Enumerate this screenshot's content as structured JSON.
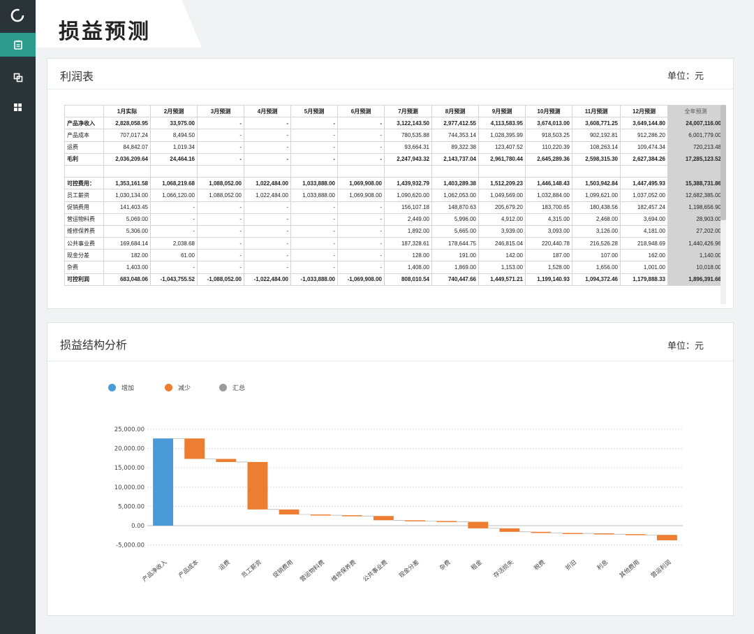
{
  "page": {
    "title": "损益预测"
  },
  "colors": {
    "sidebar": "#2a3338",
    "active": "#2e9c8d",
    "increase": "#4a9ad8",
    "decrease": "#ed7d31",
    "total": "#9a9a9a"
  },
  "nav": [
    {
      "name": "logo-icon"
    },
    {
      "name": "document-icon"
    },
    {
      "name": "layers-icon"
    },
    {
      "name": "grid-icon"
    }
  ],
  "pl_card": {
    "title": "利润表",
    "unit": "单位：元",
    "columns": [
      "",
      "1月实际",
      "2月预测",
      "3月预测",
      "4月预测",
      "5月预测",
      "6月预测",
      "7月预测",
      "8月预测",
      "9月预测",
      "10月预测",
      "11月预测",
      "12月预测",
      "全年预测"
    ],
    "rows": [
      {
        "bold": true,
        "cells": [
          "产品净收入",
          "2,828,058.95",
          "33,975.00",
          "-",
          "-",
          "-",
          "-",
          "3,122,143.50",
          "2,977,412.55",
          "4,113,583.95",
          "3,674,013.00",
          "3,608,771.25",
          "3,649,144.80",
          "24,007,116.00"
        ]
      },
      {
        "bold": false,
        "cells": [
          "产品成本",
          "707,017.24",
          "8,494.50",
          "-",
          "-",
          "-",
          "-",
          "780,535.88",
          "744,353.14",
          "1,028,395.99",
          "918,503.25",
          "902,192.81",
          "912,286.20",
          "6,001,779.00"
        ]
      },
      {
        "bold": false,
        "cells": [
          "运费",
          "84,842.07",
          "1,019.34",
          "-",
          "-",
          "-",
          "-",
          "93,664.31",
          "89,322.38",
          "123,407.52",
          "110,220.39",
          "108,263.14",
          "109,474.34",
          "720,213.48"
        ]
      },
      {
        "bold": true,
        "cells": [
          "毛利",
          "2,036,209.64",
          "24,464.16",
          "-",
          "-",
          "-",
          "-",
          "2,247,943.32",
          "2,143,737.04",
          "2,961,780.44",
          "2,645,289.36",
          "2,598,315.30",
          "2,627,384.26",
          "17,285,123.52"
        ]
      },
      {
        "bold": false,
        "cells": [
          "",
          "",
          "",
          "",
          "",
          "",
          "",
          "",
          "",
          "",
          "",
          "",
          "",
          ""
        ]
      },
      {
        "bold": true,
        "cells": [
          "可控费用：",
          "1,353,161.58",
          "1,068,219.68",
          "1,088,052.00",
          "1,022,484.00",
          "1,033,888.00",
          "1,069,908.00",
          "1,439,932.79",
          "1,403,289.38",
          "1,512,209.23",
          "1,446,148.43",
          "1,503,942.84",
          "1,447,495.93",
          "15,388,731.86"
        ]
      },
      {
        "bold": false,
        "cells": [
          "员工薪资",
          "1,030,134.00",
          "1,066,120.00",
          "1,088,052.00",
          "1,022,484.00",
          "1,033,888.00",
          "1,069,908.00",
          "1,090,620.00",
          "1,062,053.00",
          "1,049,569.00",
          "1,032,884.00",
          "1,099,621.00",
          "1,037,052.00",
          "12,682,385.00"
        ]
      },
      {
        "bold": false,
        "cells": [
          "促销费用",
          "141,403.45",
          "-",
          "-",
          "-",
          "-",
          "-",
          "156,107.18",
          "148,870.63",
          "205,679.20",
          "183,700.65",
          "180,438.56",
          "182,457.24",
          "1,198,656.90"
        ]
      },
      {
        "bold": false,
        "cells": [
          "营运物料费",
          "5,069.00",
          "-",
          "-",
          "-",
          "-",
          "-",
          "2,449.00",
          "5,996.00",
          "4,912.00",
          "4,315.00",
          "2,468.00",
          "3,694.00",
          "28,903.00"
        ]
      },
      {
        "bold": false,
        "cells": [
          "维修保养费",
          "5,306.00",
          "-",
          "-",
          "-",
          "-",
          "-",
          "1,892.00",
          "5,665.00",
          "3,939.00",
          "3,093.00",
          "3,126.00",
          "4,181.00",
          "27,202.00"
        ]
      },
      {
        "bold": false,
        "cells": [
          "公共事业费",
          "169,684.14",
          "2,038.68",
          "-",
          "-",
          "-",
          "-",
          "187,328.61",
          "178,644.75",
          "246,815.04",
          "220,440.78",
          "216,526.28",
          "218,948.69",
          "1,440,426.96"
        ]
      },
      {
        "bold": false,
        "cells": [
          "现金分差",
          "182.00",
          "61.00",
          "-",
          "-",
          "-",
          "-",
          "128.00",
          "191.00",
          "142.00",
          "187.00",
          "107.00",
          "162.00",
          "1,140.00"
        ]
      },
      {
        "bold": false,
        "cells": [
          "杂费",
          "1,403.00",
          "-",
          "-",
          "-",
          "-",
          "-",
          "1,408.00",
          "1,869.00",
          "1,153.00",
          "1,528.00",
          "1,656.00",
          "1,001.00",
          "10,018.00"
        ]
      },
      {
        "bold": true,
        "cells": [
          "可控利润",
          "683,048.06",
          "-1,043,755.52",
          "-1,088,052.00",
          "-1,022,484.00",
          "-1,033,888.00",
          "-1,069,908.00",
          "808,010.54",
          "740,447.66",
          "1,449,571.21",
          "1,199,140.93",
          "1,094,372.46",
          "1,179,888.33",
          "1,896,391.66"
        ]
      }
    ]
  },
  "chart_card": {
    "title": "损益结构分析",
    "unit": "单位：元"
  },
  "chart_data": {
    "type": "waterfall",
    "title": "",
    "legend": [
      {
        "name": "增加",
        "color": "#4a9ad8"
      },
      {
        "name": "减少",
        "color": "#ed7d31"
      },
      {
        "name": "汇总",
        "color": "#9a9a9a"
      }
    ],
    "legend_position": "top-left",
    "grid": true,
    "ylim": [
      -5000,
      25000
    ],
    "yticks": [
      "25,000.00",
      "20,000.00",
      "15,000.00",
      "10,000.00",
      "5,000.00",
      "0.00",
      "-5,000.00"
    ],
    "ytick_values": [
      25000,
      20000,
      15000,
      10000,
      5000,
      0,
      -5000
    ],
    "categories": [
      "产品净收入",
      "产品成本",
      "运费",
      "员工薪资",
      "促销费用",
      "营运物料费",
      "维修保养费",
      "公共事业费",
      "现金分差",
      "杂费",
      "租金",
      "存活损失",
      "税费",
      "折旧",
      "利息",
      "其他费用",
      "营运利润"
    ],
    "bars": [
      {
        "start": 0,
        "end": 22600,
        "kind": "increase"
      },
      {
        "start": 22600,
        "end": 17300,
        "kind": "decrease"
      },
      {
        "start": 17300,
        "end": 16500,
        "kind": "decrease"
      },
      {
        "start": 16500,
        "end": 4200,
        "kind": "decrease"
      },
      {
        "start": 4200,
        "end": 2900,
        "kind": "decrease"
      },
      {
        "start": 2900,
        "end": 2700,
        "kind": "decrease"
      },
      {
        "start": 2700,
        "end": 2500,
        "kind": "decrease"
      },
      {
        "start": 2500,
        "end": 1400,
        "kind": "decrease"
      },
      {
        "start": 1400,
        "end": 1200,
        "kind": "decrease"
      },
      {
        "start": 1200,
        "end": 1000,
        "kind": "decrease"
      },
      {
        "start": 1000,
        "end": -700,
        "kind": "decrease"
      },
      {
        "start": -700,
        "end": -1600,
        "kind": "decrease"
      },
      {
        "start": -1600,
        "end": -1900,
        "kind": "decrease"
      },
      {
        "start": -1900,
        "end": -2000,
        "kind": "decrease"
      },
      {
        "start": -2000,
        "end": -2200,
        "kind": "decrease"
      },
      {
        "start": -2200,
        "end": -2400,
        "kind": "decrease"
      },
      {
        "start": -2400,
        "end": -3800,
        "kind": "decrease"
      }
    ]
  }
}
